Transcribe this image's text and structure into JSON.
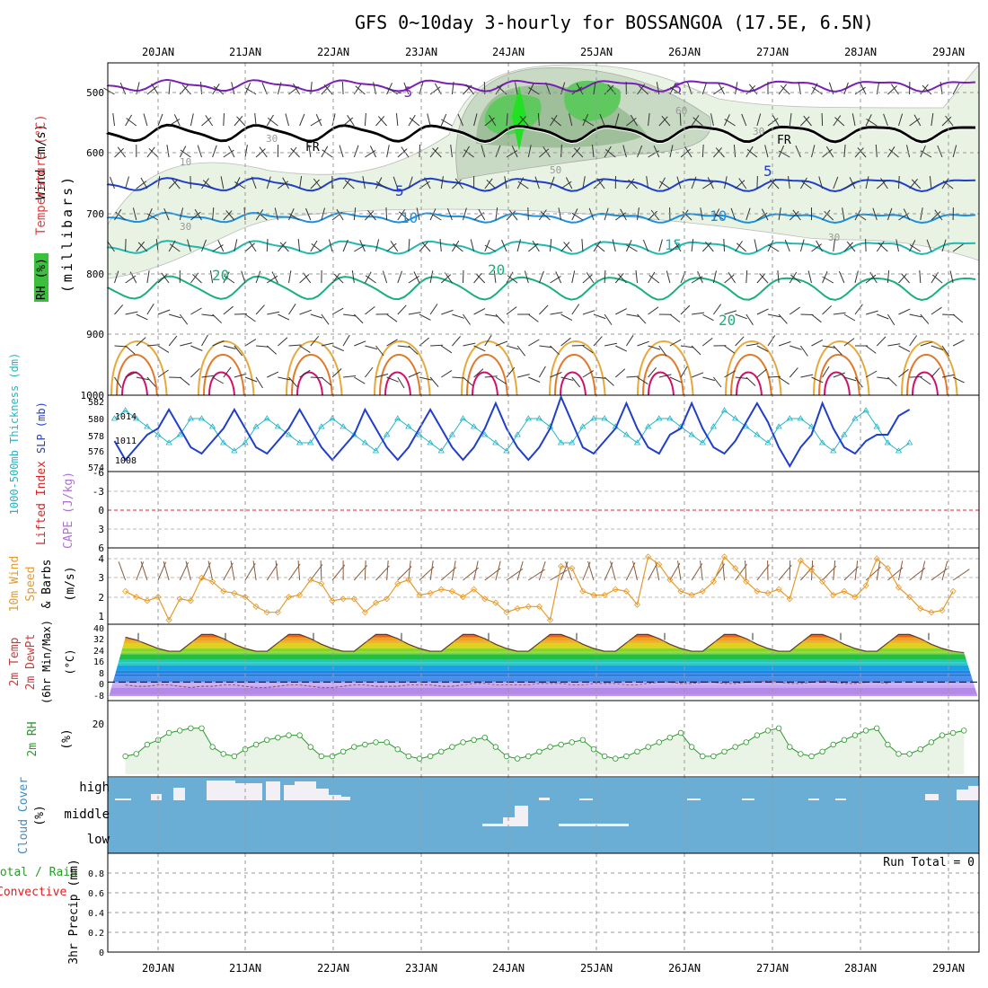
{
  "title": "GFS 0~10day 3-hourly for BOSSANGOA (17.5E, 6.5N)",
  "days": [
    "20JAN",
    "21JAN",
    "22JAN",
    "23JAN",
    "24JAN",
    "25JAN",
    "26JAN",
    "27JAN",
    "28JAN",
    "29JAN"
  ],
  "colors": {
    "sea": "#6aaed6",
    "cloud": "#f2f0f5",
    "rh_fill": "#e9f4e6",
    "rh_line": "#2a9a2a",
    "wind": "#e69a2a",
    "slp": "#1f3ecb",
    "thick": "#22b5c6",
    "lifted": "#e02020",
    "cape": "#b070d0"
  },
  "panels": {
    "upper": {
      "ylabel_wind": "Wind (m/s)",
      "ylabel_temp": "Temperature (°C)",
      "ylabel_rh": "RH (%)",
      "ylabel_p": "(millibars)",
      "yticks": [
        "500",
        "600",
        "700",
        "800",
        "900",
        "1000"
      ],
      "contour_labels": [
        "-5",
        "-5",
        "FR",
        "FR",
        "5",
        "5",
        "10",
        "10",
        "15",
        "20",
        "20",
        "20",
        "10",
        "30",
        "30",
        "30",
        "50",
        "60",
        "30"
      ]
    },
    "slp": {
      "ylabel_thick": "1000-500mb Thickness (dm)",
      "ylabel_slp": "SLP (mb)",
      "left_ticks": [
        "582",
        "580",
        "578",
        "576",
        "574"
      ],
      "right_ticks": [
        "1014",
        "1011",
        "1008"
      ]
    },
    "cape": {
      "ylabel_li": "Lifted Index",
      "ylabel_cape": "CAPE (J/kg)",
      "ticks": [
        "-6",
        "-3",
        "0",
        "3",
        "6"
      ]
    },
    "wind10": {
      "ylabel": "10m Wind",
      "ylabel2": "Speed",
      "ylabel3": "& Barbs",
      "unit": "(m/s)",
      "ticks": [
        "4",
        "3",
        "2",
        "1"
      ]
    },
    "temp2m": {
      "ylabel1": "2m Temp",
      "ylabel2": "2m DewPt",
      "ylabel3": "(6hr Min/Max)",
      "unit": "(°C)",
      "ticks": [
        "40",
        "32",
        "24",
        "16",
        "8",
        "0",
        "-8"
      ]
    },
    "rh2m": {
      "ylabel": "2m RH",
      "unit": "(%)",
      "ticks": [
        "20"
      ]
    },
    "cloud": {
      "ylabel": "Cloud Cover",
      "unit": "(%)",
      "levels": [
        "high",
        "middle",
        "low"
      ]
    },
    "precip": {
      "ylabel1": "Total / Rain",
      "ylabel2": "Convective",
      "ylabel3": "3hr Precip (mm)",
      "ticks": [
        "0.8",
        "0.6",
        "0.4",
        "0.2",
        "0"
      ],
      "run_total": "Run Total = 0"
    }
  },
  "chart_data": [
    {
      "type": "line",
      "name": "slp_thickness",
      "ylabel": "SLP (mb)",
      "series": [
        {
          "name": "SLP",
          "values": [
            1010,
            1007,
            1009,
            1011,
            1012,
            1015,
            1012,
            1009,
            1008,
            1010,
            1012,
            1015,
            1012,
            1009,
            1008,
            1010,
            1012,
            1015,
            1012,
            1009,
            1007,
            1009,
            1011,
            1015,
            1012,
            1009,
            1007,
            1009,
            1012,
            1015,
            1012,
            1009,
            1007,
            1009,
            1012,
            1016,
            1012,
            1009,
            1007,
            1009,
            1012,
            1017,
            1013,
            1009,
            1008,
            1010,
            1012,
            1016,
            1012,
            1009,
            1008,
            1011,
            1012,
            1016,
            1012,
            1009,
            1008,
            1010,
            1013,
            1016,
            1013,
            1009,
            1006,
            1009,
            1011,
            1016,
            1012,
            1009,
            1008,
            1010,
            1011,
            1011,
            1014,
            1015
          ]
        },
        {
          "name": "1000-500mb Thickness",
          "values": [
            580,
            581,
            580,
            579,
            578,
            577,
            578,
            580,
            580,
            579,
            577,
            576,
            577,
            579,
            580,
            579,
            578,
            577,
            577,
            579,
            580,
            579,
            578,
            577,
            576,
            578,
            580,
            579,
            578,
            577,
            576,
            578,
            580,
            579,
            578,
            577,
            576,
            578,
            580,
            580,
            579,
            577,
            577,
            579,
            580,
            580,
            579,
            578,
            577,
            579,
            580,
            580,
            579,
            578,
            577,
            579,
            581,
            580,
            579,
            578,
            577,
            579,
            580,
            580,
            579,
            577,
            576,
            578,
            580,
            581,
            579,
            577,
            576,
            577
          ]
        }
      ]
    },
    {
      "type": "line",
      "name": "wind10m",
      "ylabel": "(m/s)",
      "ylim": [
        0.5,
        4.3
      ],
      "values": [
        2.3,
        2.0,
        1.8,
        2.0,
        0.8,
        1.9,
        1.8,
        3.0,
        2.8,
        2.3,
        2.2,
        2.0,
        1.5,
        1.2,
        1.2,
        2.0,
        2.1,
        2.9,
        2.7,
        1.8,
        1.9,
        1.9,
        1.2,
        1.7,
        1.9,
        2.7,
        2.9,
        2.1,
        2.2,
        2.4,
        2.3,
        2.0,
        2.4,
        1.9,
        1.7,
        1.2,
        1.4,
        1.5,
        1.5,
        0.8,
        3.6,
        3.5,
        2.3,
        2.1,
        2.1,
        2.4,
        2.3,
        1.6,
        4.1,
        3.7,
        2.9,
        2.3,
        2.1,
        2.3,
        2.8,
        4.1,
        3.5,
        2.8,
        2.3,
        2.2,
        2.4,
        1.9,
        3.9,
        3.4,
        2.8,
        2.1,
        2.3,
        2.0,
        2.6,
        4.0,
        3.5,
        2.5,
        2.0,
        1.4,
        1.2,
        1.3,
        2.3
      ]
    },
    {
      "type": "area",
      "name": "temp2m",
      "ylabel": "(°C)",
      "ylim": [
        -10,
        40
      ],
      "series": [
        {
          "name": "2m Temp",
          "values": [
            32,
            30,
            27,
            24,
            22,
            22,
            28,
            34,
            34,
            31,
            27,
            24,
            22,
            22,
            28,
            34,
            34,
            31,
            27,
            24,
            22,
            22,
            28,
            34,
            34,
            31,
            27,
            24,
            22,
            22,
            28,
            34,
            34,
            31,
            27,
            24,
            22,
            22,
            28,
            34,
            34,
            31,
            27,
            24,
            22,
            22,
            28,
            34,
            34,
            31,
            27,
            24,
            22,
            22,
            28,
            34,
            34,
            31,
            27,
            24,
            22,
            22,
            28,
            34,
            34,
            31,
            27,
            24,
            22,
            22,
            28,
            34,
            34,
            31,
            27,
            24,
            22,
            21
          ]
        },
        {
          "name": "2m DewPt",
          "values": [
            -2,
            -3,
            -3,
            -2,
            -2,
            -3,
            -4,
            -3,
            -3,
            -2,
            -2,
            -3,
            -4,
            -4,
            -3,
            -2,
            -2,
            -3,
            -4,
            -4,
            -3,
            -2,
            -2,
            -3,
            -3,
            -3,
            -2,
            -2,
            -2,
            -3,
            -3,
            -2,
            -1,
            -1,
            -2,
            -2,
            -2,
            -2,
            -1,
            -1,
            -1,
            -2,
            -2,
            -1,
            -1,
            -1,
            -2,
            -2,
            -1,
            0,
            0,
            -1,
            -1,
            0,
            0,
            -1,
            -1,
            0,
            0,
            1,
            0,
            -1,
            -1,
            0,
            1,
            0,
            -1,
            -1,
            0,
            0,
            -1
          ]
        }
      ]
    },
    {
      "type": "area",
      "name": "rh2m",
      "ylabel": "(%)",
      "values": [
        10,
        11,
        15,
        17,
        20,
        21,
        22,
        22,
        14,
        11,
        10,
        13,
        15,
        17,
        18,
        19,
        19,
        14,
        10,
        10,
        12,
        14,
        15,
        16,
        16,
        13,
        10,
        9,
        10,
        12,
        14,
        16,
        17,
        18,
        14,
        10,
        9,
        10,
        12,
        14,
        15,
        16,
        17,
        13,
        10,
        9,
        10,
        12,
        14,
        16,
        18,
        20,
        14,
        10,
        10,
        12,
        14,
        16,
        19,
        21,
        22,
        14,
        11,
        10,
        12,
        15,
        17,
        19,
        21,
        22,
        15,
        11,
        11,
        13,
        16,
        19,
        20,
        21
      ]
    },
    {
      "type": "bar",
      "name": "precip",
      "ylabel": "3hr Precip (mm)",
      "ylim": [
        0,
        0.9
      ],
      "values": [
        0
      ]
    }
  ]
}
